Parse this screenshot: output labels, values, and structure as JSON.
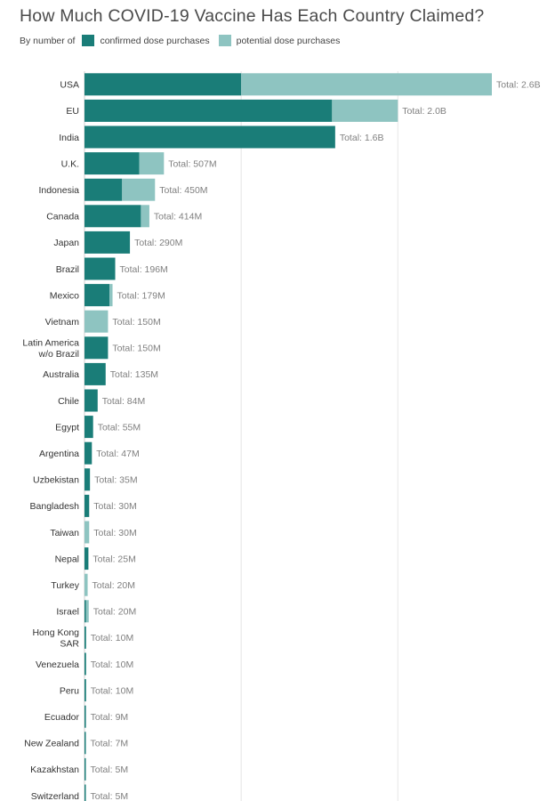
{
  "chart_data": {
    "type": "bar",
    "orientation": "horizontal",
    "stacked": true,
    "title": "How Much COVID-19 Vaccine Has Each Country Claimed?",
    "legend_prefix": "By number of",
    "legend_position": "top-left",
    "xlim": [
      0,
      2.6
    ],
    "x_unit": "billion doses",
    "gridlines": [
      1,
      2
    ],
    "grid": true,
    "colors": {
      "confirmed": "#1a7d78",
      "potential": "#8ec4c1",
      "grid": "#e6e6e6",
      "label": "#333333",
      "total": "#7f7f7f"
    },
    "categories": [
      "USA",
      "EU",
      "India",
      "U.K.",
      "Indonesia",
      "Canada",
      "Japan",
      "Brazil",
      "Mexico",
      "Vietnam",
      "Latin America w/o Brazil",
      "Australia",
      "Chile",
      "Egypt",
      "Argentina",
      "Uzbekistan",
      "Bangladesh",
      "Taiwan",
      "Nepal",
      "Turkey",
      "Israel",
      "Hong Kong SAR",
      "Venezuela",
      "Peru",
      "Ecuador",
      "New Zealand",
      "Kazakhstan",
      "Switzerland"
    ],
    "category_lines": [
      [
        "USA"
      ],
      [
        "EU"
      ],
      [
        "India"
      ],
      [
        "U.K."
      ],
      [
        "Indonesia"
      ],
      [
        "Canada"
      ],
      [
        "Japan"
      ],
      [
        "Brazil"
      ],
      [
        "Mexico"
      ],
      [
        "Vietnam"
      ],
      [
        "Latin America",
        "w/o Brazil"
      ],
      [
        "Australia"
      ],
      [
        "Chile"
      ],
      [
        "Egypt"
      ],
      [
        "Argentina"
      ],
      [
        "Uzbekistan"
      ],
      [
        "Bangladesh"
      ],
      [
        "Taiwan"
      ],
      [
        "Nepal"
      ],
      [
        "Turkey"
      ],
      [
        "Israel"
      ],
      [
        "Hong Kong",
        "SAR"
      ],
      [
        "Venezuela"
      ],
      [
        "Peru"
      ],
      [
        "Ecuador"
      ],
      [
        "New Zealand"
      ],
      [
        "Kazakhstan"
      ],
      [
        "Switzerland"
      ]
    ],
    "series": [
      {
        "name": "confirmed dose purchases",
        "key": "confirmed",
        "values": [
          1.0,
          1.58,
          1.6,
          0.35,
          0.24,
          0.36,
          0.29,
          0.196,
          0.16,
          0.0,
          0.15,
          0.135,
          0.084,
          0.055,
          0.047,
          0.035,
          0.03,
          0.0,
          0.025,
          0.0,
          0.01,
          0.01,
          0.01,
          0.01,
          0.009,
          0.007,
          0.005,
          0.005
        ]
      },
      {
        "name": "potential dose purchases",
        "key": "potential",
        "values": [
          1.6,
          0.42,
          0.0,
          0.157,
          0.21,
          0.054,
          0.0,
          0.0,
          0.019,
          0.15,
          0.0,
          0.0,
          0.0,
          0.0,
          0.0,
          0.0,
          0.0,
          0.03,
          0.0,
          0.02,
          0.01,
          0.0,
          0.0,
          0.0,
          0.0,
          0.0,
          0.0,
          0.0
        ]
      }
    ],
    "total_labels": [
      "Total: 2.6B",
      "Total: 2.0B",
      "Total: 1.6B",
      "Total: 507M",
      "Total: 450M",
      "Total: 414M",
      "Total: 290M",
      "Total: 196M",
      "Total: 179M",
      "Total: 150M",
      "Total: 150M",
      "Total: 135M",
      "Total: 84M",
      "Total: 55M",
      "Total: 47M",
      "Total: 35M",
      "Total: 30M",
      "Total: 30M",
      "Total: 25M",
      "Total: 20M",
      "Total: 20M",
      "Total: 10M",
      "Total: 10M",
      "Total: 10M",
      "Total: 9M",
      "Total: 7M",
      "Total: 5M",
      "Total: 5M"
    ]
  }
}
